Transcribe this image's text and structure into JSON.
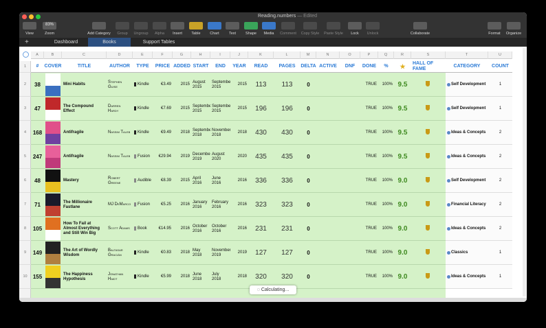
{
  "window": {
    "title": "Reading.numbers",
    "status": "— Edited"
  },
  "toolbar": [
    {
      "label": "View"
    },
    {
      "label": "Zoom",
      "value": "83%"
    },
    {
      "label": "Add Category"
    },
    {
      "label": "Group"
    },
    {
      "label": "Ungroup"
    },
    {
      "label": "Alpha"
    },
    {
      "label": "Insert"
    },
    {
      "label": "Table"
    },
    {
      "label": "Chart"
    },
    {
      "label": "Text"
    },
    {
      "label": "Shape"
    },
    {
      "label": "Media"
    },
    {
      "label": "Comment"
    },
    {
      "label": "Copy Style"
    },
    {
      "label": "Paste Style"
    },
    {
      "label": "Lock"
    },
    {
      "label": "Unlock"
    },
    {
      "label": "Collaborate"
    },
    {
      "label": "Format"
    },
    {
      "label": "Organize"
    }
  ],
  "tabs": [
    "Dashboard",
    "Books",
    "Support Tables"
  ],
  "columns": [
    "A",
    "B",
    "C",
    "D",
    "E",
    "F",
    "G",
    "H",
    "I",
    "J",
    "K",
    "L",
    "M",
    "N",
    "O",
    "P",
    "Q",
    "R",
    "S",
    "T",
    "U"
  ],
  "row_numbers": [
    "1",
    "2",
    "3",
    "4",
    "5",
    "6",
    "7",
    "8",
    "9",
    "10"
  ],
  "table": {
    "header": [
      "#",
      "COVER",
      "TITLE",
      "AUTHOR",
      "TYPE",
      "PRICE",
      "ADDED",
      "START",
      "END",
      "YEAR",
      "READ",
      "PAGES",
      "DELTA",
      "ACTIVE",
      "DNF",
      "DONE",
      "%",
      "★",
      "HALL OF FAME",
      "CATEGORY",
      "COUNT"
    ],
    "rows": [
      {
        "num": "38",
        "title": "Mini Habits",
        "author": "Stephen Guise",
        "type": "Kindle",
        "price": "€3.49",
        "added": "2015",
        "start": "August 2015",
        "end": "September 2015",
        "year": "2015",
        "read": "113",
        "pages": "113",
        "delta": "0",
        "done": "TRUE",
        "pct": "100%",
        "rating": "9.5",
        "category": "Self Development",
        "count": "1"
      },
      {
        "num": "47",
        "title": "The Compound Effect",
        "author": "Darren Hardy",
        "type": "Kindle",
        "price": "€7.69",
        "added": "2015",
        "start": "September 2015",
        "end": "September 2015",
        "year": "2015",
        "read": "196",
        "pages": "196",
        "delta": "0",
        "done": "TRUE",
        "pct": "100%",
        "rating": "9.5",
        "category": "Self Development",
        "count": "1"
      },
      {
        "num": "168",
        "title": "Antifragile",
        "author": "Nassim Taleb",
        "type": "Kindle",
        "price": "€9.49",
        "added": "2018",
        "start": "September 2018",
        "end": "November 2018",
        "year": "2018",
        "read": "430",
        "pages": "430",
        "delta": "0",
        "done": "TRUE",
        "pct": "100%",
        "rating": "9.5",
        "category": "Ideas & Concepts",
        "count": "2"
      },
      {
        "num": "247",
        "title": "Antifragile",
        "author": "Nassim Taleb",
        "type": "Fusion",
        "price": "€29.94",
        "added": "2019",
        "start": "December 2019",
        "end": "August 2020",
        "year": "2020",
        "read": "435",
        "pages": "435",
        "delta": "0",
        "done": "TRUE",
        "pct": "100%",
        "rating": "9.5",
        "category": "Ideas & Concepts",
        "count": "2"
      },
      {
        "num": "48",
        "title": "Mastery",
        "author": "Robert Greene",
        "type": "Audible",
        "price": "€8.39",
        "added": "2015",
        "start": "April 2016",
        "end": "June 2016",
        "year": "2016",
        "read": "336",
        "pages": "336",
        "delta": "0",
        "done": "TRUE",
        "pct": "100%",
        "rating": "9.0",
        "category": "Self Development",
        "count": "2"
      },
      {
        "num": "71",
        "title": "The Millionaire Fastlane",
        "author": "MJ DeMarco",
        "type": "Fusion",
        "price": "€5.25",
        "added": "2016",
        "start": "January 2016",
        "end": "February 2016",
        "year": "2016",
        "read": "323",
        "pages": "323",
        "delta": "0",
        "done": "TRUE",
        "pct": "100%",
        "rating": "9.0",
        "category": "Financial Literacy",
        "count": "2"
      },
      {
        "num": "105",
        "title": "How To Fail at Almost Everything and Still Win Big",
        "author": "Scott Adams",
        "type": "Book",
        "price": "€14.95",
        "added": "2016",
        "start": "October 2016",
        "end": "October 2016",
        "year": "2016",
        "read": "231",
        "pages": "231",
        "delta": "0",
        "done": "TRUE",
        "pct": "100%",
        "rating": "9.0",
        "category": "Ideas & Concepts",
        "count": "2"
      },
      {
        "num": "149",
        "title": "The Art of Wordly Wisdom",
        "author": "Baltasar Gracián",
        "type": "Kindle",
        "price": "€0.83",
        "added": "2018",
        "start": "May 2018",
        "end": "November 2019",
        "year": "2019",
        "read": "127",
        "pages": "127",
        "delta": "0",
        "done": "TRUE",
        "pct": "100%",
        "rating": "9.0",
        "category": "Classics",
        "count": "1"
      },
      {
        "num": "155",
        "title": "The Happiness Hypothesis",
        "author": "Jonathan Haidt",
        "type": "Kindle",
        "price": "€5.99",
        "added": "2018",
        "start": "June 2018",
        "end": "July 2018",
        "year": "2018",
        "read": "320",
        "pages": "320",
        "delta": "0",
        "done": "TRUE",
        "pct": "100%",
        "rating": "9.0",
        "category": "Ideas & Concepts",
        "count": "1"
      }
    ]
  },
  "status": "Calculating..."
}
